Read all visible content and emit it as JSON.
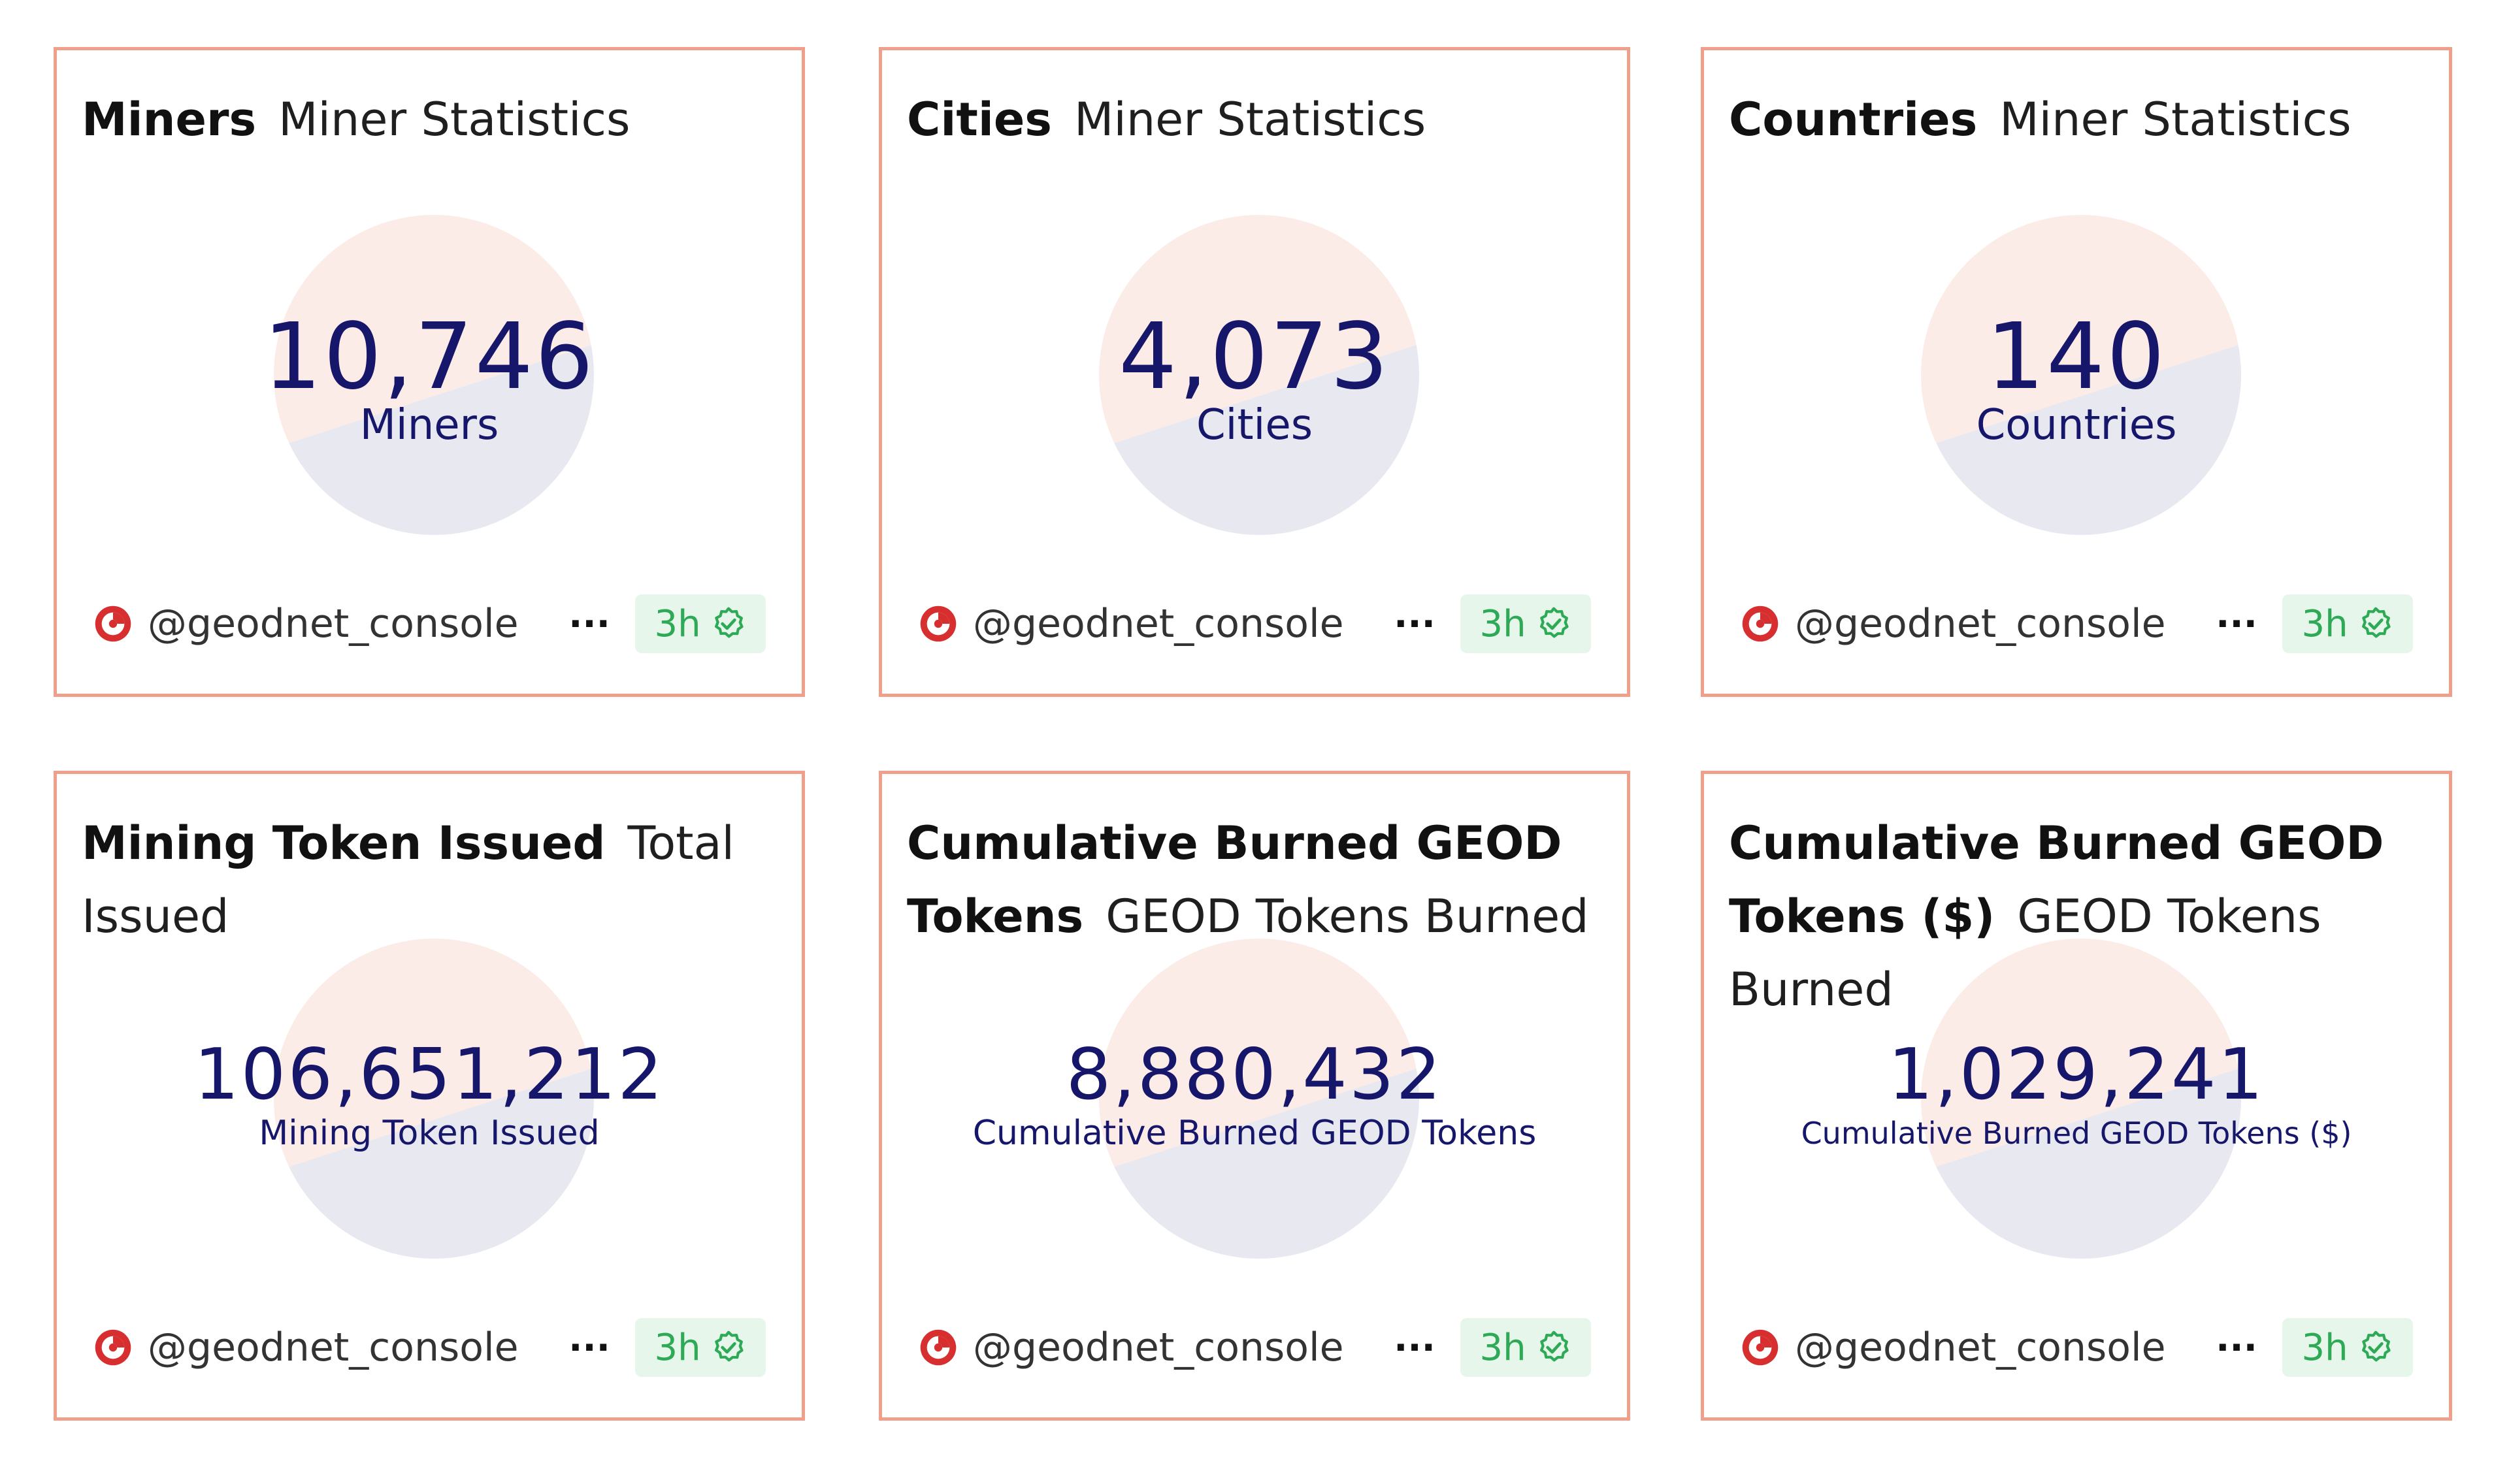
{
  "cards": [
    {
      "title": "Miners",
      "subtitle": "Miner Statistics",
      "value": "10,746",
      "value_label": "Miners",
      "source": "@geodnet_console",
      "more_label": "···",
      "badge": "3h",
      "icon": "geodnet-logo-icon"
    },
    {
      "title": "Cities",
      "subtitle": "Miner Statistics",
      "value": "4,073",
      "value_label": "Cities",
      "source": "@geodnet_console",
      "more_label": "···",
      "badge": "3h",
      "icon": "geodnet-logo-icon"
    },
    {
      "title": "Countries",
      "subtitle": "Miner Statistics",
      "value": "140",
      "value_label": "Countries",
      "source": "@geodnet_console",
      "more_label": "···",
      "badge": "3h",
      "icon": "geodnet-logo-icon"
    },
    {
      "title": "Mining Token Issued",
      "subtitle": "Total Issued",
      "value": "106,651,212",
      "value_label": "Mining Token Issued",
      "source": "@geodnet_console",
      "more_label": "···",
      "badge": "3h",
      "icon": "geodnet-logo-icon"
    },
    {
      "title": "Cumulative Burned GEOD Tokens",
      "subtitle": "GEOD Tokens Burned",
      "value": "8,880,432",
      "value_label": "Cumulative Burned GEOD Tokens",
      "source": "@geodnet_console",
      "more_label": "···",
      "badge": "3h",
      "icon": "geodnet-logo-icon"
    },
    {
      "title": "Cumulative Burned GEOD Tokens ($)",
      "subtitle": "GEOD Tokens Burned",
      "value": "1,029,241",
      "value_label": "Cumulative Burned GEOD Tokens ($)",
      "source": "@geodnet_console",
      "more_label": "···",
      "badge": "3h",
      "icon": "geodnet-logo-icon"
    }
  ],
  "colors": {
    "card_border": "#ef9f8a",
    "value_text": "#16166b",
    "badge_bg": "#e7f6ea",
    "badge_text": "#2eaa57",
    "logo_red": "#d72f2f"
  }
}
